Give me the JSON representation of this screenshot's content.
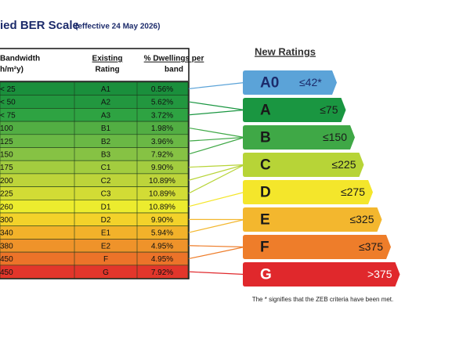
{
  "header": {
    "title": "ied BER  Scale",
    "subtitle": "(effective 24 May 2026)"
  },
  "table": {
    "columns": [
      [
        "Bandwidth",
        "h/m²y)"
      ],
      [
        "Existing",
        "Rating"
      ],
      [
        "% Dwellings per",
        "band"
      ]
    ],
    "rows": [
      [
        "< 25",
        "A1",
        "0.56%"
      ],
      [
        "< 50",
        "A2",
        "5.62%"
      ],
      [
        "< 75",
        "A3",
        "3.72%"
      ],
      [
        "100",
        "B1",
        "1.98%"
      ],
      [
        "125",
        "B2",
        "3.96%"
      ],
      [
        "150",
        "B3",
        "7.92%"
      ],
      [
        "175",
        "C1",
        "9.90%"
      ],
      [
        "200",
        "C2",
        "10.89%"
      ],
      [
        "225",
        "C3",
        "10.89%"
      ],
      [
        "260",
        "D1",
        "10.89%"
      ],
      [
        "300",
        "D2",
        "9.90%"
      ],
      [
        "340",
        "E1",
        "5.94%"
      ],
      [
        "380",
        "E2",
        "4.95%"
      ],
      [
        "450",
        "F",
        "4.95%"
      ],
      [
        "450",
        "G",
        "7.92%"
      ]
    ]
  },
  "new_ratings": {
    "title": "New Ratings",
    "items": [
      {
        "label": "A0",
        "limit": "≤42*"
      },
      {
        "label": "A",
        "limit": "≤75"
      },
      {
        "label": "B",
        "limit": "≤150"
      },
      {
        "label": "C",
        "limit": "≤225"
      },
      {
        "label": "D",
        "limit": "≤275"
      },
      {
        "label": "E",
        "limit": "≤325"
      },
      {
        "label": "F",
        "limit": "≤375"
      },
      {
        "label": "G",
        "limit": ">375"
      }
    ],
    "footnote": "The * signifies that the ZEB criteria have been met."
  }
}
